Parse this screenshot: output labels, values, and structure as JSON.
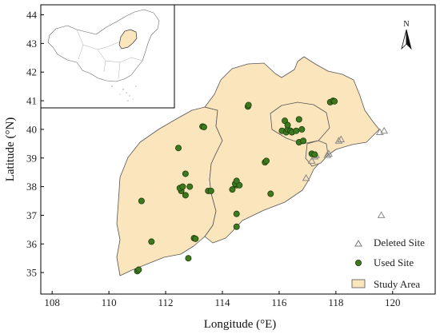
{
  "chart_data": {
    "type": "map-scatter",
    "xlabel": "Longitude (°E)",
    "ylabel": "Latitude (°N)",
    "xlim": [
      107.6,
      121.5
    ],
    "ylim": [
      34.25,
      44.35
    ],
    "x_ticks": [
      "108",
      "110",
      "112",
      "114",
      "116",
      "118",
      "120"
    ],
    "x_tick_values": [
      108,
      110,
      112,
      114,
      116,
      118,
      120
    ],
    "y_ticks": [
      "35",
      "36",
      "37",
      "38",
      "39",
      "40",
      "41",
      "42",
      "43",
      "44"
    ],
    "y_tick_values": [
      35,
      36,
      37,
      38,
      39,
      40,
      41,
      42,
      43,
      44
    ],
    "north_arrow_label": "N",
    "legend": {
      "placement": "bottom-right",
      "entries": [
        {
          "label": "Deleted Site",
          "marker": "triangle-open"
        },
        {
          "label": "Used Site",
          "marker": "circle-filled"
        },
        {
          "label": "Study Area",
          "marker": "patch"
        }
      ]
    },
    "colors": {
      "study_area_fill": "#fbe5bd",
      "boundary": "#555555",
      "used_site": "#3d7a1e",
      "used_site_edge": "#1f3d0d",
      "deleted_site": "#888888"
    },
    "series": [
      {
        "name": "Used Site",
        "points": [
          [
            111.0,
            35.05
          ],
          [
            111.05,
            35.1
          ],
          [
            111.5,
            36.08
          ],
          [
            111.15,
            37.5
          ],
          [
            112.8,
            35.5
          ],
          [
            113.0,
            36.2
          ],
          [
            113.05,
            36.18
          ],
          [
            112.7,
            37.7
          ],
          [
            112.55,
            37.85
          ],
          [
            112.5,
            37.95
          ],
          [
            112.6,
            38.0
          ],
          [
            112.85,
            38.0
          ],
          [
            112.7,
            38.45
          ],
          [
            112.45,
            39.35
          ],
          [
            113.5,
            37.85
          ],
          [
            113.6,
            37.85
          ],
          [
            113.3,
            40.1
          ],
          [
            113.35,
            40.08
          ],
          [
            114.5,
            36.6
          ],
          [
            114.5,
            37.05
          ],
          [
            114.35,
            37.9
          ],
          [
            114.5,
            38.05
          ],
          [
            114.45,
            38.1
          ],
          [
            114.6,
            38.05
          ],
          [
            114.5,
            38.2
          ],
          [
            114.9,
            40.8
          ],
          [
            114.92,
            40.85
          ],
          [
            115.5,
            38.85
          ],
          [
            115.55,
            38.9
          ],
          [
            115.7,
            37.75
          ],
          [
            116.1,
            39.95
          ],
          [
            116.25,
            39.9
          ],
          [
            116.3,
            40.0
          ],
          [
            116.4,
            39.95
          ],
          [
            116.2,
            40.3
          ],
          [
            116.3,
            40.15
          ],
          [
            116.45,
            39.9
          ],
          [
            116.6,
            39.95
          ],
          [
            116.7,
            40.35
          ],
          [
            116.7,
            39.55
          ],
          [
            116.8,
            40.0
          ],
          [
            116.85,
            39.6
          ],
          [
            117.15,
            39.15
          ],
          [
            117.25,
            39.12
          ],
          [
            117.8,
            40.95
          ],
          [
            117.9,
            41.0
          ],
          [
            117.95,
            40.98
          ]
        ]
      },
      {
        "name": "Deleted Site",
        "points": [
          [
            116.95,
            38.3
          ],
          [
            117.15,
            38.9
          ],
          [
            117.25,
            39.05
          ],
          [
            117.3,
            39.1
          ],
          [
            117.7,
            39.1
          ],
          [
            117.75,
            39.15
          ],
          [
            118.1,
            39.6
          ],
          [
            118.18,
            39.65
          ],
          [
            119.55,
            39.9
          ],
          [
            119.7,
            39.95
          ],
          [
            119.6,
            37.0
          ]
        ]
      }
    ]
  }
}
